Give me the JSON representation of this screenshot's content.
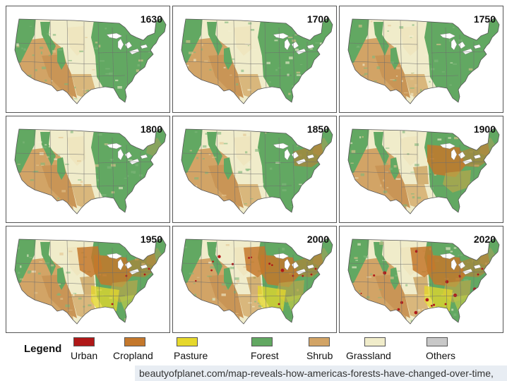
{
  "panels": [
    {
      "year": "1630",
      "stage": 0
    },
    {
      "year": "1700",
      "stage": 0
    },
    {
      "year": "1750",
      "stage": 0
    },
    {
      "year": "1800",
      "stage": 1
    },
    {
      "year": "1850",
      "stage": 2
    },
    {
      "year": "1900",
      "stage": 3
    },
    {
      "year": "1950",
      "stage": 4
    },
    {
      "year": "2000",
      "stage": 5
    },
    {
      "year": "2020",
      "stage": 5
    }
  ],
  "legend": {
    "title": "Legend",
    "items": [
      {
        "label": "Urban",
        "color": "#b01818"
      },
      {
        "label": "Cropland",
        "color": "#c4782c"
      },
      {
        "label": "Pasture",
        "color": "#e6d82c"
      },
      {
        "label": "Forest",
        "color": "#62a862"
      },
      {
        "label": "Shrub",
        "color": "#d2a466"
      },
      {
        "label": "Grassland",
        "color": "#f0ecca"
      },
      {
        "label": "Others",
        "color": "#c8c8c8"
      }
    ]
  },
  "source": "beautyofplanet.com/map-reveals-how-americas-forests-have-changed-over-time,"
}
